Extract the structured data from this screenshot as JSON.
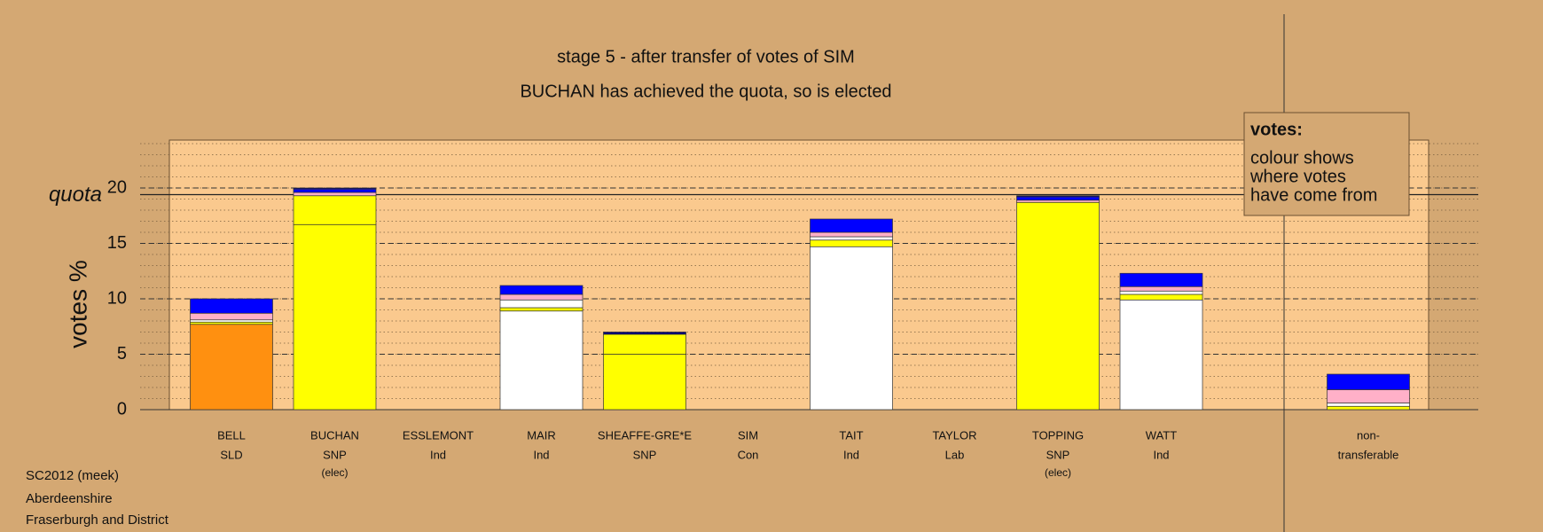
{
  "title": "stage 5 - after transfer of votes of SIM",
  "subtitle": "BUCHAN has achieved the quota, so is elected",
  "y_label": "votes %",
  "quota_label": "quota",
  "legend": {
    "title": "votes:",
    "lines": [
      "colour shows",
      "where votes",
      "have come from"
    ]
  },
  "footer": [
    "SC2012 (meek)",
    "Aberdeenshire",
    "Fraserburgh and District"
  ],
  "chart_data": {
    "type": "stacked-bar",
    "categories": [
      "BELL",
      "BUCHAN",
      "ESSLEMONT",
      "MAIR",
      "SHEAFFE-GRE*E",
      "SIM",
      "TAIT",
      "TAYLOR",
      "TOPPING",
      "WATT",
      "non-"
    ],
    "parties": [
      "SLD",
      "SNP",
      "Ind",
      "Ind",
      "SNP",
      "Con",
      "Ind",
      "Lab",
      "SNP",
      "Ind",
      "transferable"
    ],
    "status": [
      null,
      "(elec)",
      null,
      null,
      null,
      null,
      null,
      null,
      "(elec)",
      null,
      null
    ],
    "stacks": [
      [
        {
          "value": 7.7,
          "color": "#ff9010"
        },
        {
          "value": 0.2,
          "color": "#ffff00"
        },
        {
          "value": 0.2,
          "color": "#ffffff"
        },
        {
          "value": 0.6,
          "color": "#ffb0c8"
        },
        {
          "value": 1.3,
          "color": "#0000ff"
        }
      ],
      [
        {
          "value": 16.7,
          "color": "#ffff00"
        },
        {
          "value": 2.6,
          "color": "#ffff00"
        },
        {
          "value": 0.3,
          "color": "#ffb0c8"
        },
        {
          "value": 0.3,
          "color": "#0000ff"
        },
        {
          "value": 0.1,
          "color": "#000080"
        }
      ],
      [],
      [
        {
          "value": 8.9,
          "color": "#ffffff"
        },
        {
          "value": 0.3,
          "color": "#ffff00"
        },
        {
          "value": 0.7,
          "color": "#ffffff"
        },
        {
          "value": 0.5,
          "color": "#ffb0c8"
        },
        {
          "value": 0.8,
          "color": "#0000ff"
        }
      ],
      [
        {
          "value": 5.0,
          "color": "#ffff00"
        },
        {
          "value": 1.8,
          "color": "#ffff00"
        },
        {
          "value": 0.2,
          "color": "#000080"
        }
      ],
      [],
      [
        {
          "value": 14.7,
          "color": "#ffffff"
        },
        {
          "value": 0.6,
          "color": "#ffff00"
        },
        {
          "value": 0.3,
          "color": "#ffffff"
        },
        {
          "value": 0.4,
          "color": "#ffb0c8"
        },
        {
          "value": 1.2,
          "color": "#0000ff"
        }
      ],
      [],
      [
        {
          "value": 18.7,
          "color": "#ffff00"
        },
        {
          "value": 0.2,
          "color": "#ffb0c8"
        },
        {
          "value": 0.3,
          "color": "#0000ff"
        },
        {
          "value": 0.1,
          "color": "#000080"
        }
      ],
      [
        {
          "value": 9.9,
          "color": "#ffffff"
        },
        {
          "value": 0.5,
          "color": "#ffff00"
        },
        {
          "value": 0.3,
          "color": "#ffffff"
        },
        {
          "value": 0.4,
          "color": "#ffb0c8"
        },
        {
          "value": 1.2,
          "color": "#0000ff"
        }
      ],
      [
        {
          "value": 0.3,
          "color": "#ffff00"
        },
        {
          "value": 0.3,
          "color": "#ffffff"
        },
        {
          "value": 1.2,
          "color": "#ffb0c8"
        },
        {
          "value": 1.4,
          "color": "#0000ff"
        }
      ]
    ],
    "quota": 19.4,
    "ylim": [
      0,
      24
    ],
    "yticks": [
      0,
      5,
      10,
      15,
      20
    ],
    "minor_step": 1
  }
}
